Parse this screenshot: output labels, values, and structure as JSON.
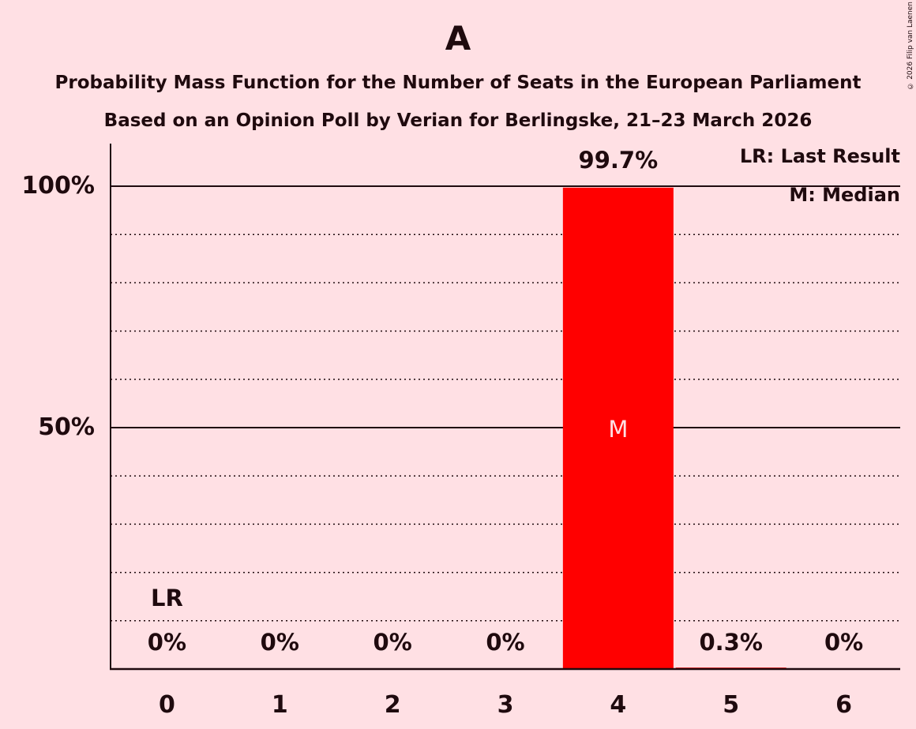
{
  "header": {
    "title": "A",
    "subtitle1": "Probability Mass Function for the Number of Seats in the European Parliament",
    "subtitle2": "Based on an Opinion Poll by Verian for Berlingske, 21–23 March 2026",
    "copyright": "© 2026 Filip van Laenen"
  },
  "legend": {
    "lr": "LR: Last Result",
    "m": "M: Median"
  },
  "colors": {
    "background": "#FFE0E4",
    "bar": "#FF0000",
    "text": "#1F0A0E",
    "median_label": "#FFE0E4"
  },
  "axis": {
    "y_ticks": [
      "100%",
      "50%"
    ],
    "x_ticks": [
      "0",
      "1",
      "2",
      "3",
      "4",
      "5",
      "6"
    ]
  },
  "bars": [
    {
      "seats": "0",
      "value": 0,
      "label": "0%",
      "marker": "LR"
    },
    {
      "seats": "1",
      "value": 0,
      "label": "0%"
    },
    {
      "seats": "2",
      "value": 0,
      "label": "0%"
    },
    {
      "seats": "3",
      "value": 0,
      "label": "0%"
    },
    {
      "seats": "4",
      "value": 99.7,
      "label": "99.7%",
      "marker": "M"
    },
    {
      "seats": "5",
      "value": 0.3,
      "label": "0.3%"
    },
    {
      "seats": "6",
      "value": 0,
      "label": "0%"
    }
  ],
  "chart_data": {
    "type": "bar",
    "title": "A",
    "subtitle": "Probability Mass Function for the Number of Seats in the European Parliament — Based on an Opinion Poll by Verian for Berlingske, 21–23 March 2026",
    "categories": [
      "0",
      "1",
      "2",
      "3",
      "4",
      "5",
      "6"
    ],
    "values": [
      0,
      0,
      0,
      0,
      99.7,
      0.3,
      0
    ],
    "value_labels": [
      "0%",
      "0%",
      "0%",
      "0%",
      "99.7%",
      "0.3%",
      "0%"
    ],
    "xlabel": "",
    "ylabel": "",
    "ylim": [
      0,
      100
    ],
    "y_tick_labels": [
      "50%",
      "100%"
    ],
    "grid": {
      "major": [
        50,
        100
      ],
      "minor_dotted": [
        10,
        20,
        30,
        40,
        60,
        70,
        80,
        90
      ]
    },
    "annotations": [
      {
        "category": "0",
        "text": "LR",
        "meaning": "Last Result"
      },
      {
        "category": "4",
        "text": "M",
        "meaning": "Median"
      }
    ],
    "legend": [
      "LR: Last Result",
      "M: Median"
    ],
    "legend_position": "top-right"
  }
}
